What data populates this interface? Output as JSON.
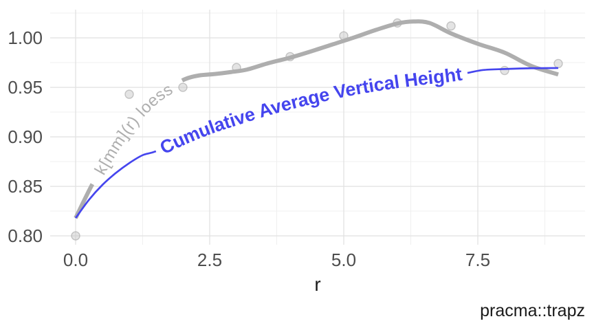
{
  "caption": "pracma::trapz",
  "chart_data": {
    "type": "line",
    "title": "",
    "xlabel": "r",
    "ylabel": "",
    "xlim": [
      -0.4744,
      9.5
    ],
    "ylim": [
      0.791,
      1.0285
    ],
    "grid": true,
    "legend": "none",
    "x_ticks": [
      {
        "v": 0.0,
        "label": "0.0"
      },
      {
        "v": 2.5,
        "label": "2.5"
      },
      {
        "v": 5.0,
        "label": "5.0"
      },
      {
        "v": 7.5,
        "label": "7.5"
      }
    ],
    "x_minor": [
      1.25,
      3.75,
      6.25,
      8.75
    ],
    "y_ticks": [
      {
        "v": 0.8,
        "label": "0.80"
      },
      {
        "v": 0.85,
        "label": "0.85"
      },
      {
        "v": 0.9,
        "label": "0.90"
      },
      {
        "v": 0.95,
        "label": "0.95"
      },
      {
        "v": 1.0,
        "label": "1.00"
      }
    ],
    "y_minor": [
      0.825,
      0.875,
      0.925,
      0.975,
      1.025
    ],
    "points": {
      "color": "#c3c3c3",
      "stroke": "#9f9f9f",
      "radius": 6,
      "xy": [
        [
          0,
          0.8
        ],
        [
          1,
          0.943
        ],
        [
          2,
          0.95
        ],
        [
          3,
          0.97
        ],
        [
          4,
          0.981
        ],
        [
          5,
          1.002
        ],
        [
          6,
          1.015
        ],
        [
          7,
          1.012
        ],
        [
          8,
          0.967
        ],
        [
          9,
          0.974
        ]
      ]
    },
    "series": [
      {
        "name": "loess",
        "label": "k[mm](r) loess",
        "color": "#aeaeae",
        "width": 6,
        "label_size": 24,
        "label_weight": "normal",
        "letter_spacing": 1,
        "gap_frac": [
          0.066,
          0.31
        ],
        "label_frac": 0.188,
        "xy": [
          [
            0,
            0.818
          ],
          [
            0.3,
            0.851
          ],
          [
            0.6,
            0.88
          ],
          [
            0.9,
            0.905
          ],
          [
            1.2,
            0.925
          ],
          [
            1.5,
            0.9405
          ],
          [
            1.8,
            0.951
          ],
          [
            2.05,
            0.9585
          ],
          [
            2.3,
            0.962
          ],
          [
            2.6,
            0.9635
          ],
          [
            2.9,
            0.9655
          ],
          [
            3.2,
            0.968
          ],
          [
            3.6,
            0.9745
          ],
          [
            4,
            0.98
          ],
          [
            4.4,
            0.9865
          ],
          [
            4.8,
            0.9935
          ],
          [
            5.2,
            1.0005
          ],
          [
            5.6,
            1.008
          ],
          [
            6,
            1.0145
          ],
          [
            6.3,
            1.0165
          ],
          [
            6.6,
            1.015
          ],
          [
            7,
            1.0045
          ],
          [
            7.5,
            0.994
          ],
          [
            8,
            0.985
          ],
          [
            8.5,
            0.9715
          ],
          [
            9,
            0.963
          ]
        ]
      },
      {
        "name": "cumavg",
        "label": "Cumulative Average Vertical Height",
        "color": "#4545ee",
        "width": 2.7,
        "label_size": 27,
        "label_weight": "bold",
        "letter_spacing": 0,
        "gap_frac": [
          0.205,
          0.825
        ],
        "label_frac": 0.515,
        "xy": [
          [
            0,
            0.818
          ],
          [
            0.25,
            0.8365
          ],
          [
            0.5,
            0.8515
          ],
          [
            0.75,
            0.8635
          ],
          [
            1,
            0.8735
          ],
          [
            1.25,
            0.8815
          ],
          [
            1.5,
            0.8855
          ],
          [
            2,
            0.898
          ],
          [
            2.5,
            0.909
          ],
          [
            3,
            0.918
          ],
          [
            3.5,
            0.9265
          ],
          [
            4,
            0.934
          ],
          [
            4.5,
            0.9405
          ],
          [
            5,
            0.9465
          ],
          [
            5.5,
            0.9515
          ],
          [
            6,
            0.9555
          ],
          [
            6.5,
            0.959
          ],
          [
            7,
            0.962
          ],
          [
            7.3,
            0.9645
          ],
          [
            7.6,
            0.9675
          ],
          [
            8,
            0.9685
          ],
          [
            8.5,
            0.9693
          ],
          [
            9,
            0.9695
          ]
        ]
      }
    ],
    "colors": {
      "grid_major": "#e3e3e3",
      "grid_minor": "#efefef",
      "tick_label": "#4d4d4d",
      "axis_title": "#1a1a1a",
      "caption": "#1a1a1a",
      "background": "#ffffff"
    }
  }
}
